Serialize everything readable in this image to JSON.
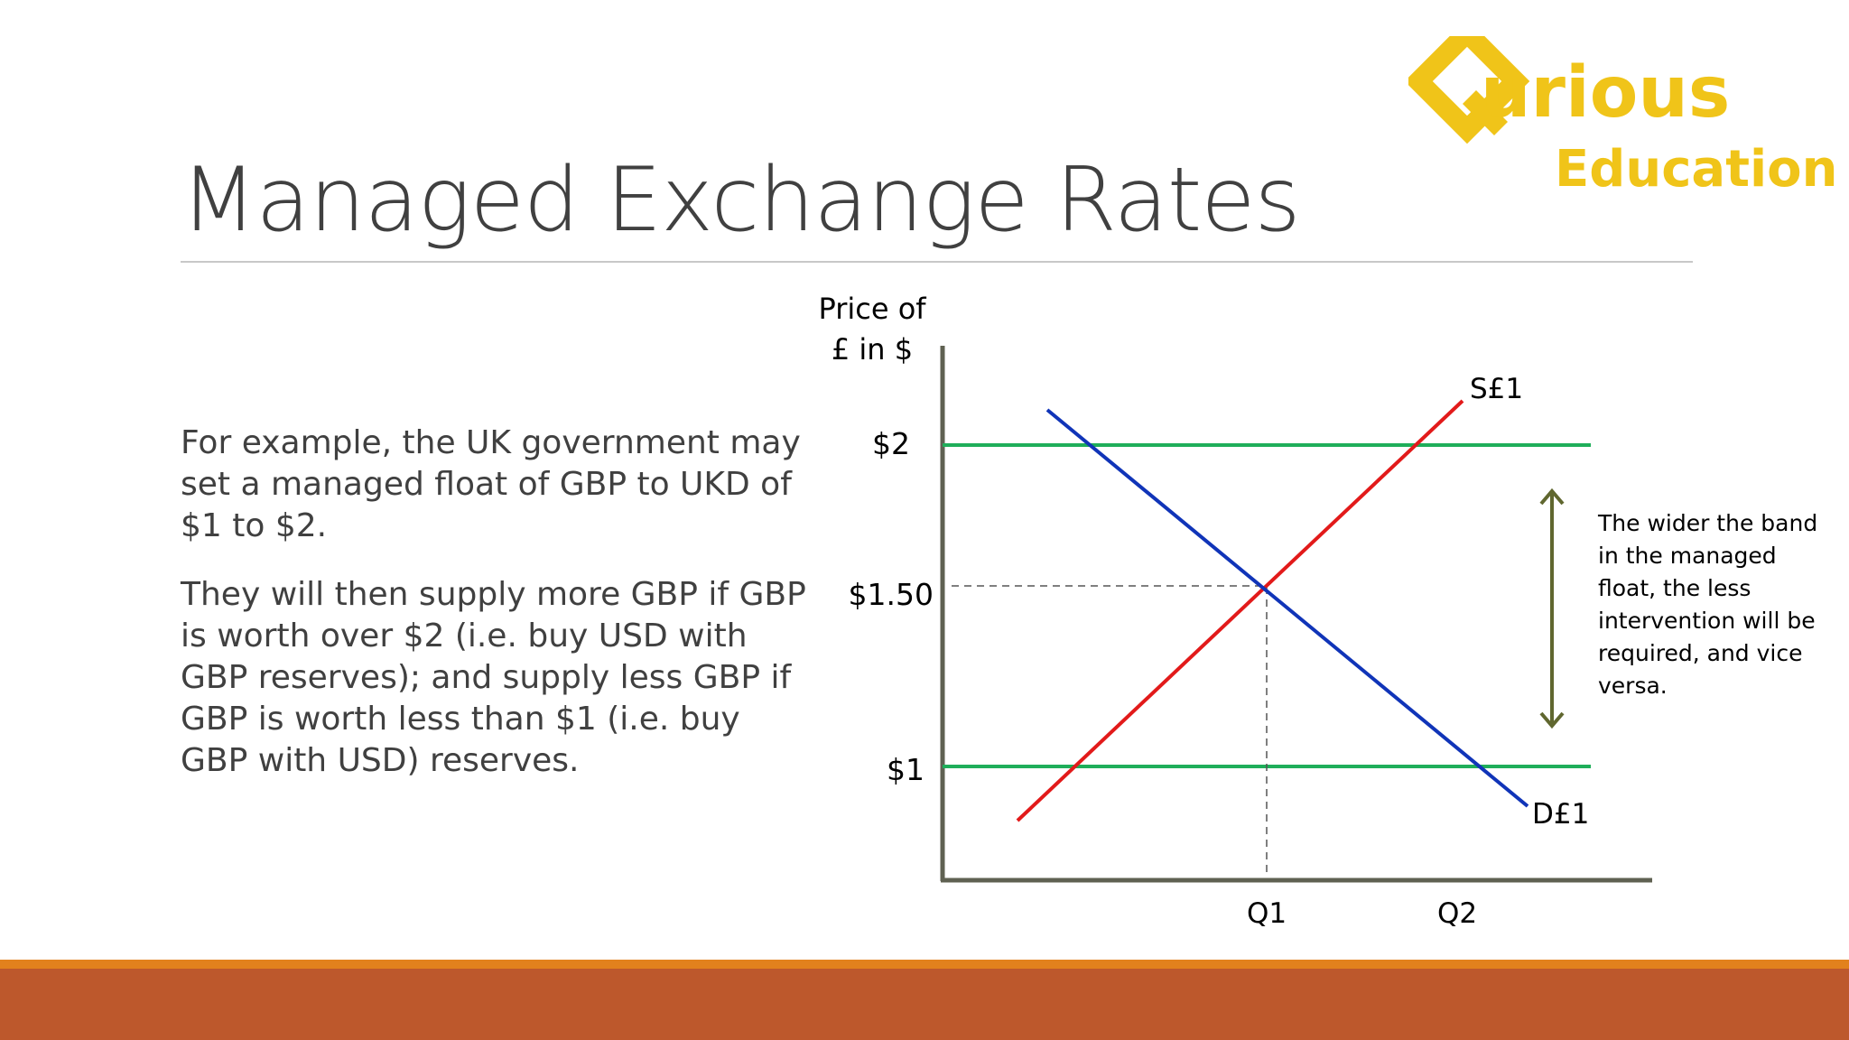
{
  "slide": {
    "title": "Managed Exchange Rates",
    "logo": {
      "word": "urious",
      "sub": "Education",
      "color": "#f0c419",
      "mark_icon": "q-diamond-logo-icon"
    },
    "paragraphs": [
      "For example, the UK government may set a managed float of GBP to UKD of $1 to $2.",
      "They will then supply more GBP if GBP is worth over $2 (i.e. buy USD with GBP reserves); and supply less GBP if GBP is worth less than $1 (i.e. buy GBP with USD) reserves."
    ],
    "note": "The wider the band in the managed float, the less intervention will be required, and vice versa.",
    "footer_colors": {
      "line": "#e2811d",
      "bar": "#bd582c"
    }
  },
  "diagram": {
    "y_label_line1": "Price of",
    "y_label_line2": "£ in $",
    "price_labels": {
      "upper": "$2",
      "mid": "$1.50",
      "lower": "$1"
    },
    "quantity_labels": {
      "q1": "Q1",
      "q2": "Q2"
    },
    "supply_label": "S£1",
    "demand_label": "D£1",
    "colors": {
      "axis": "#5f6152",
      "supply": "#e21a1a",
      "demand": "#1034b8",
      "band": "#1fae5a",
      "arrow": "#60672f",
      "guide": "#555555"
    }
  }
}
